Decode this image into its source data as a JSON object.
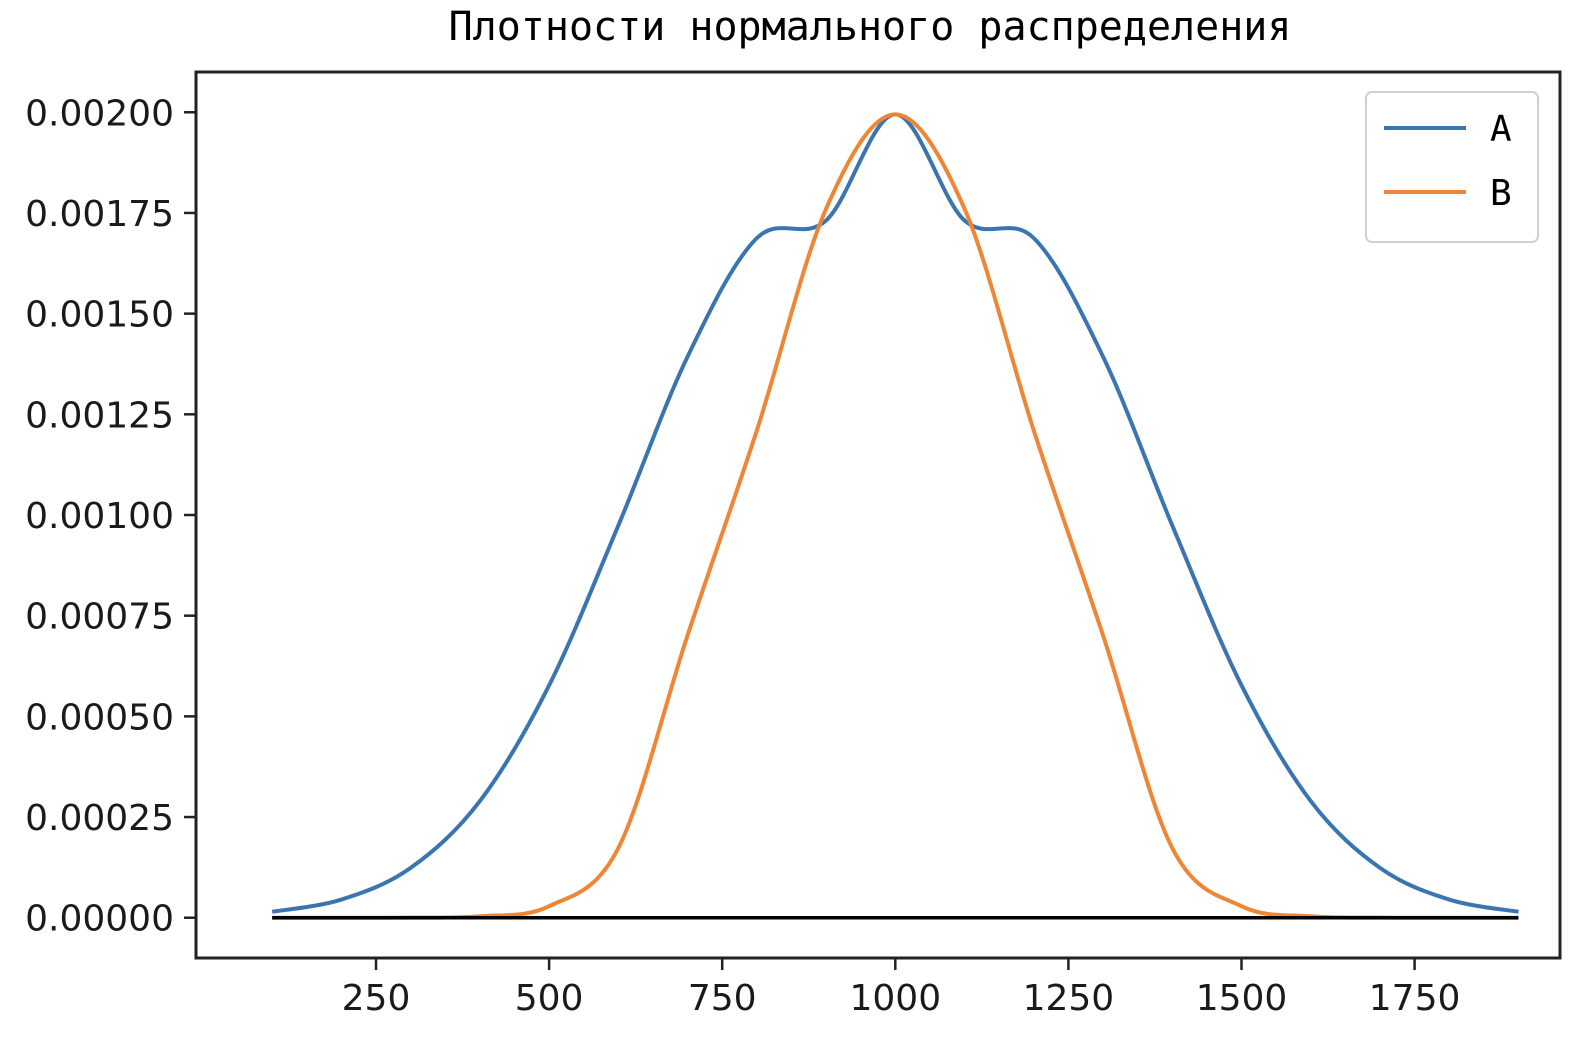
{
  "chart_data": {
    "type": "line",
    "title": "Плотности нормального распределения",
    "xlabel": "",
    "ylabel": "",
    "xlim": [
      -10,
      1960
    ],
    "ylim": [
      -0.0001,
      0.0021
    ],
    "xticks": [
      250,
      500,
      750,
      1000,
      1250,
      1500,
      1750
    ],
    "xtick_labels": [
      "250",
      "500",
      "750",
      "1000",
      "1250",
      "1500",
      "1750"
    ],
    "yticks": [
      0.0,
      0.00025,
      0.0005,
      0.00075,
      0.001,
      0.00125,
      0.0015,
      0.00175,
      0.002
    ],
    "ytick_labels": [
      "0.00000",
      "0.00025",
      "0.00050",
      "0.00075",
      "0.00100",
      "0.00125",
      "0.00150",
      "0.00175",
      "0.00200"
    ],
    "grid": false,
    "legend": "top-right",
    "series": [
      {
        "name": "A",
        "color": "#3b75af",
        "x": [
          100,
          200,
          300,
          400,
          500,
          600,
          700,
          800,
          900,
          1000,
          1100,
          1200,
          1300,
          1400,
          1500,
          1600,
          1700,
          1800,
          1900
        ],
        "values": [
          1.47e-05,
          4.51e-05,
          0.0001238,
          0.0002896,
          0.0005771,
          0.0009741,
          0.0013933,
          0.0016875,
          0.0017312,
          0.0019947,
          0.0017312,
          0.0016875,
          0.0013933,
          0.0009741,
          0.0005771,
          0.0002896,
          0.0001238,
          4.51e-05,
          1.47e-05
        ]
      },
      {
        "name": "B",
        "color": "#ef8636",
        "x": [
          100,
          200,
          300,
          400,
          500,
          600,
          700,
          800,
          900,
          1000,
          1100,
          1200,
          1300,
          1400,
          1500,
          1600,
          1700,
          1800,
          1900
        ],
        "values": [
          0.0,
          0.0,
          2e-07,
          3.6e-06,
          2.86e-05,
          0.0001731,
          0.0007014,
          0.0012099,
          0.0017603,
          0.0019947,
          0.0017603,
          0.0012099,
          0.0007014,
          0.0001731,
          2.86e-05,
          3.6e-06,
          2e-07,
          0.0,
          0.0
        ]
      },
      {
        "name": "",
        "color": "#000000",
        "x": [
          100,
          1900
        ],
        "values": [
          0,
          0
        ]
      }
    ]
  }
}
